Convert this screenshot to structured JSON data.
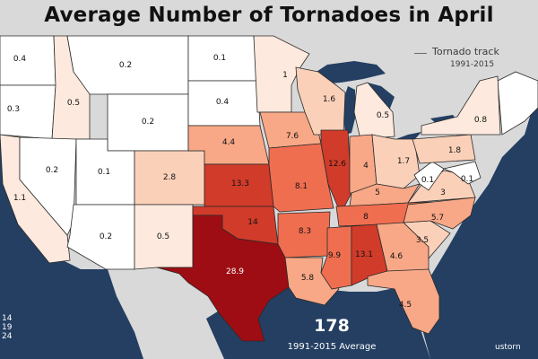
{
  "title": "Average Number of Tornadoes in April",
  "legend": {
    "track_label": "Tornado track",
    "track_years": "1991-2015"
  },
  "total": {
    "value": "178",
    "label": "1991-2015 Average"
  },
  "credit": "ustorn",
  "scale_labels": [
    "14",
    "19",
    "24"
  ],
  "colors": {
    "ocean": "#243f62",
    "land_outside": "#d9d9d9",
    "border": "#2a2a2a",
    "lakes": "#243f62",
    "bins": [
      "#ffffff",
      "#fde9dd",
      "#fbd0b9",
      "#f8a887",
      "#f06e50",
      "#d13b2a",
      "#9e0d14"
    ]
  },
  "states": [
    {
      "id": "WA",
      "value": "0.4"
    },
    {
      "id": "OR",
      "value": "0.3"
    },
    {
      "id": "CA",
      "value": "1.1"
    },
    {
      "id": "ID",
      "value": "0.5"
    },
    {
      "id": "NV",
      "value": "0.2"
    },
    {
      "id": "MT",
      "value": "0.2"
    },
    {
      "id": "WY",
      "value": "0.2"
    },
    {
      "id": "UT",
      "value": "0.1"
    },
    {
      "id": "AZ",
      "value": "0.2"
    },
    {
      "id": "CO",
      "value": "2.8"
    },
    {
      "id": "NM",
      "value": "0.5"
    },
    {
      "id": "ND",
      "value": "0.1"
    },
    {
      "id": "SD",
      "value": "0.4"
    },
    {
      "id": "NE",
      "value": "4.4"
    },
    {
      "id": "KS",
      "value": "13.3"
    },
    {
      "id": "OK",
      "value": "14"
    },
    {
      "id": "TX",
      "value": "28.9"
    },
    {
      "id": "MN",
      "value": "1"
    },
    {
      "id": "IA",
      "value": "7.6"
    },
    {
      "id": "MO",
      "value": "8.1"
    },
    {
      "id": "AR",
      "value": "8.3"
    },
    {
      "id": "LA",
      "value": "5.8"
    },
    {
      "id": "WI",
      "value": "1.6"
    },
    {
      "id": "IL",
      "value": "12.6"
    },
    {
      "id": "MI",
      "value": "0.5"
    },
    {
      "id": "IN",
      "value": "4"
    },
    {
      "id": "OH",
      "value": "1.7"
    },
    {
      "id": "KY",
      "value": "5"
    },
    {
      "id": "TN",
      "value": "8"
    },
    {
      "id": "MS",
      "value": "9.9"
    },
    {
      "id": "AL",
      "value": "13.1"
    },
    {
      "id": "GA",
      "value": "4.6"
    },
    {
      "id": "FL",
      "value": "4.5"
    },
    {
      "id": "SC",
      "value": "3.5"
    },
    {
      "id": "NC",
      "value": "5.7"
    },
    {
      "id": "VA",
      "value": "3"
    },
    {
      "id": "WV",
      "value": "0.1"
    },
    {
      "id": "PA",
      "value": "1.8"
    },
    {
      "id": "NY",
      "value": "0.8"
    },
    {
      "id": "MD",
      "value": "0.1"
    }
  ]
}
